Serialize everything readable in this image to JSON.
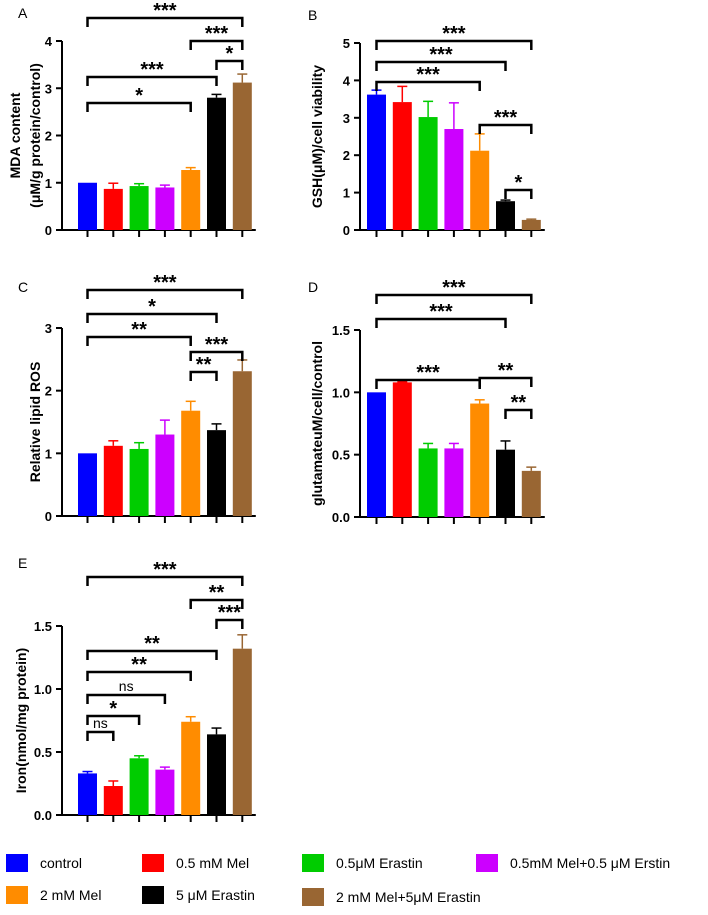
{
  "series_colors": [
    "#0000ff",
    "#ff0000",
    "#00cc00",
    "#cc00ff",
    "#ff8c00",
    "#000000",
    "#996633"
  ],
  "legend": {
    "items": [
      {
        "label": "control",
        "color": "#0000ff"
      },
      {
        "label": "0.5 mM Mel",
        "color": "#ff0000"
      },
      {
        "label": "0.5μM Erastin",
        "color": "#00cc00"
      },
      {
        "label": "0.5mM Mel+0.5 μM Erstin",
        "color": "#cc00ff"
      },
      {
        "label": "2 mM Mel",
        "color": "#ff8c00"
      },
      {
        "label": "5 μM Erastin",
        "color": "#000000"
      },
      {
        "label": "2 mM Mel+5μM Erastin",
        "color": "#996633"
      }
    ]
  },
  "chart_data": [
    {
      "panel": "A",
      "type": "bar",
      "ylabel_lines": [
        "MDA content",
        "(μM/g protein/control)"
      ],
      "ylim": [
        0,
        4
      ],
      "yticks": [
        0,
        1,
        2,
        3,
        4
      ],
      "tick_labels": [
        "0",
        "1",
        "2",
        "3",
        "4"
      ],
      "values": [
        1.0,
        0.87,
        0.93,
        0.9,
        1.27,
        2.8,
        3.12
      ],
      "errors": [
        0.0,
        0.12,
        0.05,
        0.05,
        0.05,
        0.07,
        0.18
      ],
      "brackets": [
        {
          "from": 0,
          "to": 4,
          "label": "*"
        },
        {
          "from": 0,
          "to": 5,
          "label": "***"
        },
        {
          "from": 5,
          "to": 6,
          "label": "*"
        },
        {
          "from": 4,
          "to": 6,
          "label": "***"
        },
        {
          "from": 0,
          "to": 6,
          "label": "***"
        }
      ]
    },
    {
      "panel": "B",
      "type": "bar",
      "ylabel_lines": [
        "GSH(μM)/cell viability"
      ],
      "ylim": [
        0,
        5
      ],
      "yticks": [
        0,
        1,
        2,
        3,
        4,
        5
      ],
      "tick_labels": [
        "0",
        "1",
        "2",
        "3",
        "4",
        "5"
      ],
      "values": [
        3.62,
        3.42,
        3.02,
        2.7,
        2.12,
        0.77,
        0.27
      ],
      "errors": [
        0.12,
        0.42,
        0.42,
        0.7,
        0.45,
        0.03,
        0.02
      ],
      "brackets": [
        {
          "from": 5,
          "to": 6,
          "label": "*"
        },
        {
          "from": 4,
          "to": 6,
          "label": "***"
        },
        {
          "from": 0,
          "to": 4,
          "label": "***"
        },
        {
          "from": 0,
          "to": 5,
          "label": "***"
        },
        {
          "from": 0,
          "to": 6,
          "label": "***"
        }
      ]
    },
    {
      "panel": "C",
      "type": "bar",
      "ylabel_lines": [
        "Relative lipid ROS"
      ],
      "ylim": [
        0,
        3
      ],
      "yticks": [
        0,
        1,
        2,
        3
      ],
      "tick_labels": [
        "0",
        "1",
        "2",
        "3"
      ],
      "values": [
        1.0,
        1.12,
        1.07,
        1.3,
        1.68,
        1.37,
        2.31
      ],
      "errors": [
        0.0,
        0.08,
        0.1,
        0.23,
        0.15,
        0.1,
        0.18
      ],
      "brackets": [
        {
          "from": 4,
          "to": 5,
          "label": "**"
        },
        {
          "from": 4,
          "to": 6,
          "label": "***"
        },
        {
          "from": 0,
          "to": 4,
          "label": "**"
        },
        {
          "from": 0,
          "to": 5,
          "label": "*"
        },
        {
          "from": 0,
          "to": 6,
          "label": "***"
        }
      ]
    },
    {
      "panel": "D",
      "type": "bar",
      "ylabel_lines": [
        "glutamateuM/cell/control"
      ],
      "ylim": [
        0,
        1.5
      ],
      "yticks": [
        0,
        0.5,
        1.0,
        1.5
      ],
      "tick_labels": [
        "0.0",
        "0.5",
        "1.0",
        "1.5"
      ],
      "values": [
        1.0,
        1.08,
        0.55,
        0.55,
        0.91,
        0.54,
        0.37
      ],
      "errors": [
        0.0,
        0.005,
        0.04,
        0.04,
        0.03,
        0.07,
        0.03
      ],
      "brackets": [
        {
          "from": 5,
          "to": 6,
          "label": "**"
        },
        {
          "from": 4,
          "to": 6,
          "label": "**"
        },
        {
          "from": 0,
          "to": 4,
          "label": "***"
        },
        {
          "from": 0,
          "to": 5,
          "label": "***"
        },
        {
          "from": 0,
          "to": 6,
          "label": "***"
        }
      ]
    },
    {
      "panel": "E",
      "type": "bar",
      "ylabel_lines": [
        "Iron(nmol/mg protein)"
      ],
      "ylim": [
        0,
        1.5
      ],
      "yticks": [
        0,
        0.5,
        1.0,
        1.5
      ],
      "tick_labels": [
        "0.0",
        "0.5",
        "1.0",
        "1.5"
      ],
      "values": [
        0.33,
        0.23,
        0.45,
        0.36,
        0.74,
        0.64,
        1.32
      ],
      "errors": [
        0.015,
        0.04,
        0.02,
        0.02,
        0.04,
        0.05,
        0.11
      ],
      "brackets": [
        {
          "from": 0,
          "to": 1,
          "label": "ns"
        },
        {
          "from": 0,
          "to": 2,
          "label": "*"
        },
        {
          "from": 0,
          "to": 3,
          "label": "ns"
        },
        {
          "from": 0,
          "to": 4,
          "label": "**"
        },
        {
          "from": 0,
          "to": 5,
          "label": "**"
        },
        {
          "from": 5,
          "to": 6,
          "label": "***"
        },
        {
          "from": 4,
          "to": 6,
          "label": "**"
        },
        {
          "from": 0,
          "to": 6,
          "label": "***"
        }
      ]
    }
  ]
}
